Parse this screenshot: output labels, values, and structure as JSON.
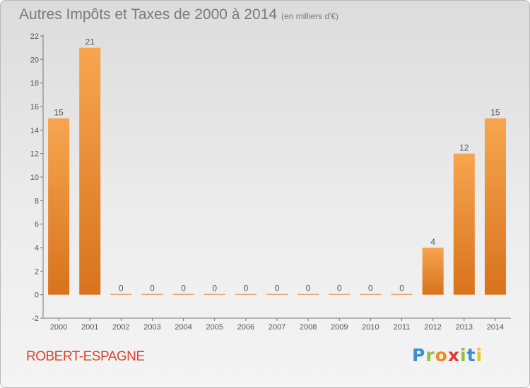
{
  "title": "Autres Impôts et Taxes de 2000 à 2014",
  "title_unit": "(en milliers d'€)",
  "commune": "ROBERT-ESPAGNE",
  "brand": {
    "letters": [
      "P",
      "r",
      "o",
      "x",
      "i",
      "t",
      "i"
    ],
    "colors": [
      "#3a8fd0",
      "#8cc23f",
      "#f08a1c",
      "#e23a2e",
      "#8cc23f",
      "#3a8fd0",
      "#f0c21c"
    ]
  },
  "colors": {
    "bar_top": "#f7a550",
    "bar_bottom": "#d8731c",
    "axis": "#777777",
    "text": "#555555"
  },
  "chart_data": {
    "type": "bar",
    "categories": [
      "2000",
      "2001",
      "2002",
      "2003",
      "2004",
      "2005",
      "2006",
      "2007",
      "2008",
      "2009",
      "2010",
      "2011",
      "2012",
      "2013",
      "2014"
    ],
    "values": [
      15,
      21,
      0,
      0,
      0,
      0,
      0,
      0,
      0,
      0,
      0,
      0,
      4,
      12,
      15
    ],
    "data_labels": [
      "15",
      "21",
      "0",
      "0",
      "0",
      "0",
      "0",
      "0",
      "0",
      "0",
      "0",
      "0",
      "4",
      "12",
      "15"
    ],
    "y_ticks": [
      "-2",
      "0",
      "2",
      "4",
      "6",
      "8",
      "10",
      "12",
      "14",
      "16",
      "18",
      "20",
      "22"
    ],
    "ylim": [
      -2,
      22
    ],
    "grid": false
  }
}
